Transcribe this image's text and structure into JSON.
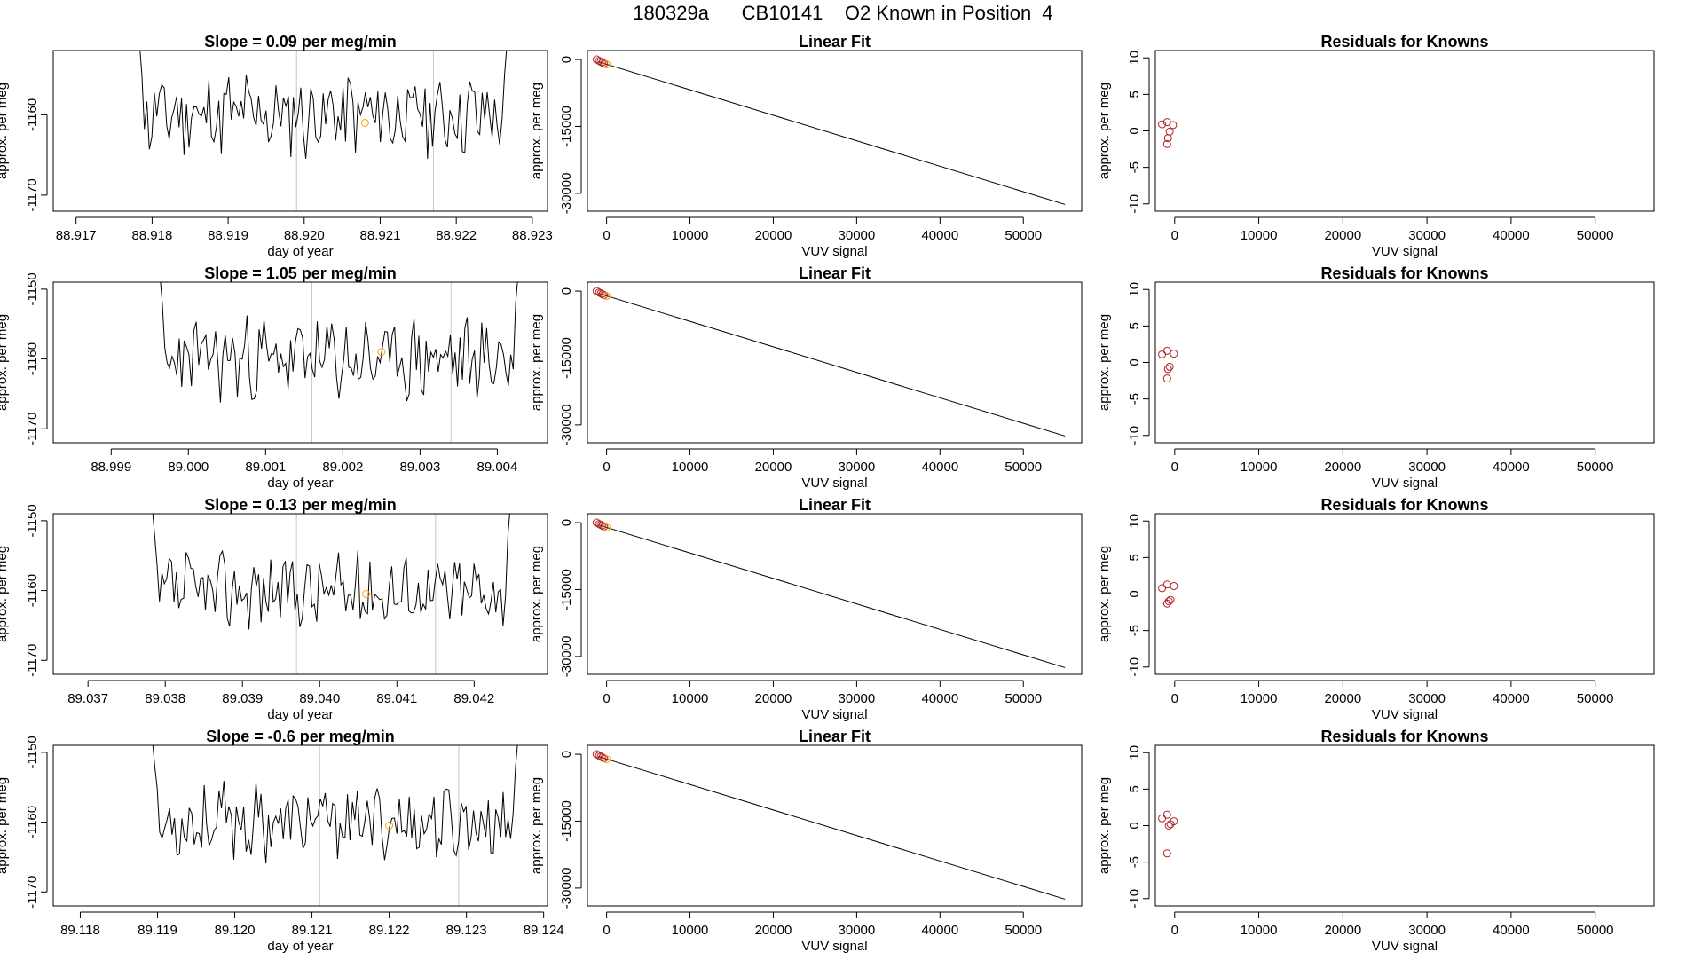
{
  "figure": {
    "title_run": "180329a",
    "title_cylinder": "CB10141",
    "title_desc": "O2 Known in Position  4"
  },
  "colors": {
    "line": "#000000",
    "gridline": "#c8c8c8",
    "known_points": "#b22222",
    "highlight_point": "#ffa500",
    "fit_line": "#000000"
  },
  "chart_data": [
    {
      "type": "line",
      "panel": "time",
      "row": 1,
      "title": "Slope =  0.09  per meg/min",
      "xlabel": "day of year",
      "ylabel": "approx. per meg",
      "xlim": [
        88.9167,
        88.9232
      ],
      "ylim": [
        -1172,
        -1152
      ],
      "xticks": [
        88.917,
        88.918,
        88.919,
        88.92,
        88.921,
        88.922,
        88.923
      ],
      "xticklabels": [
        "88.917",
        "88.918",
        "88.919",
        "88.920",
        "88.921",
        "88.922",
        "88.923"
      ],
      "yticks": [
        -1170,
        -1160
      ],
      "yticklabels": [
        "-1170",
        "-1160"
      ],
      "vlines": [
        88.9199,
        88.9217
      ],
      "highlight": {
        "x": 88.9208,
        "y": -1161
      },
      "series_x_range": [
        88.9178,
        88.9227
      ],
      "series_center": -1160,
      "series_amp": 4.5,
      "seed": 11
    },
    {
      "type": "scatter",
      "panel": "fit",
      "row": 1,
      "title": "Linear Fit",
      "xlabel": "VUV signal",
      "ylabel": "approx. per meg",
      "xlim": [
        -2300,
        57000
      ],
      "ylim": [
        -34000,
        2000
      ],
      "xticks": [
        0,
        10000,
        20000,
        30000,
        40000,
        50000
      ],
      "xticklabels": [
        "0",
        "10000",
        "20000",
        "30000",
        "40000",
        "50000"
      ],
      "yticks": [
        0,
        -15000,
        -30000
      ],
      "yticklabels": [
        "0",
        "-15000",
        "-30000"
      ],
      "fit_line": {
        "x": [
          -1000,
          55000
        ],
        "y": [
          -500,
          -32500
        ]
      },
      "points": [
        {
          "x": -1200,
          "y": 0
        },
        {
          "x": -900,
          "y": -300
        },
        {
          "x": -700,
          "y": -500
        },
        {
          "x": -500,
          "y": -700
        },
        {
          "x": -300,
          "y": -900
        }
      ],
      "highlight": {
        "x": 0,
        "y": -1100
      }
    },
    {
      "type": "scatter",
      "panel": "residuals",
      "row": 1,
      "title": "Residuals for Knowns",
      "xlabel": "VUV signal",
      "ylabel": "approx. per meg",
      "xlim": [
        -2300,
        57000
      ],
      "ylim": [
        -11,
        11
      ],
      "xticks": [
        0,
        10000,
        20000,
        30000,
        40000,
        50000
      ],
      "xticklabels": [
        "0",
        "10000",
        "20000",
        "30000",
        "40000",
        "50000"
      ],
      "yticks": [
        -10,
        -5,
        0,
        5,
        10
      ],
      "yticklabels": [
        "-10",
        "-5",
        "0",
        "5",
        "10"
      ],
      "points": [
        {
          "x": -1500,
          "y": 0.9
        },
        {
          "x": -900,
          "y": 1.2
        },
        {
          "x": -200,
          "y": 0.8
        },
        {
          "x": -600,
          "y": -0.1
        },
        {
          "x": -800,
          "y": -1.0
        },
        {
          "x": -900,
          "y": -1.8
        }
      ]
    },
    {
      "type": "line",
      "panel": "time",
      "row": 2,
      "title": "Slope =  1.05  per meg/min",
      "xlabel": "day of year",
      "ylabel": "approx. per meg",
      "xlim": [
        88.99825,
        89.00465
      ],
      "ylim": [
        -1172,
        -1149
      ],
      "xticks": [
        88.999,
        89.0,
        89.001,
        89.002,
        89.003,
        89.004
      ],
      "xticklabels": [
        "88.999",
        "89.000",
        "89.001",
        "89.002",
        "89.003",
        "89.004"
      ],
      "yticks": [
        -1170,
        -1160,
        -1150
      ],
      "yticklabels": [
        "-1170",
        "-1160",
        "-1150"
      ],
      "vlines": [
        89.0016,
        89.0034
      ],
      "highlight": {
        "x": 89.0025,
        "y": -1159
      },
      "series_x_range": [
        88.9996,
        89.0043
      ],
      "series_center": -1160,
      "series_amp": 5,
      "seed": 23
    },
    {
      "type": "scatter",
      "panel": "fit",
      "row": 2,
      "title": "Linear Fit",
      "xlabel": "VUV signal",
      "ylabel": "approx. per meg",
      "xlim": [
        -2300,
        57000
      ],
      "ylim": [
        -34000,
        2000
      ],
      "xticks": [
        0,
        10000,
        20000,
        30000,
        40000,
        50000
      ],
      "xticklabels": [
        "0",
        "10000",
        "20000",
        "30000",
        "40000",
        "50000"
      ],
      "yticks": [
        0,
        -15000,
        -30000
      ],
      "yticklabels": [
        "0",
        "-15000",
        "-30000"
      ],
      "fit_line": {
        "x": [
          -1000,
          55000
        ],
        "y": [
          -500,
          -32500
        ]
      },
      "points": [
        {
          "x": -1200,
          "y": 0
        },
        {
          "x": -900,
          "y": -300
        },
        {
          "x": -700,
          "y": -500
        },
        {
          "x": -500,
          "y": -700
        },
        {
          "x": -300,
          "y": -900
        }
      ],
      "highlight": {
        "x": 0,
        "y": -1100
      }
    },
    {
      "type": "scatter",
      "panel": "residuals",
      "row": 2,
      "title": "Residuals for Knowns",
      "xlabel": "VUV signal",
      "ylabel": "approx. per meg",
      "xlim": [
        -2300,
        57000
      ],
      "ylim": [
        -11,
        11
      ],
      "xticks": [
        0,
        10000,
        20000,
        30000,
        40000,
        50000
      ],
      "xticklabels": [
        "0",
        "10000",
        "20000",
        "30000",
        "40000",
        "50000"
      ],
      "yticks": [
        -10,
        -5,
        0,
        5,
        10
      ],
      "yticklabels": [
        "-10",
        "-5",
        "0",
        "5",
        "10"
      ],
      "points": [
        {
          "x": -1500,
          "y": 1.1
        },
        {
          "x": -900,
          "y": 1.6
        },
        {
          "x": -100,
          "y": 1.2
        },
        {
          "x": -600,
          "y": -0.6
        },
        {
          "x": -800,
          "y": -0.9
        },
        {
          "x": -900,
          "y": -2.2
        }
      ]
    },
    {
      "type": "line",
      "panel": "time",
      "row": 3,
      "title": "Slope =  0.13  per meg/min",
      "xlabel": "day of year",
      "ylabel": "approx. per meg",
      "xlim": [
        89.03655,
        89.04295
      ],
      "ylim": [
        -1172,
        -1149
      ],
      "xticks": [
        89.037,
        89.038,
        89.039,
        89.04,
        89.041,
        89.042
      ],
      "xticklabels": [
        "89.037",
        "89.038",
        "89.039",
        "89.040",
        "89.041",
        "89.042"
      ],
      "yticks": [
        -1170,
        -1160,
        -1150
      ],
      "yticklabels": [
        "-1170",
        "-1160",
        "-1150"
      ],
      "vlines": [
        89.0397,
        89.0415
      ],
      "highlight": {
        "x": 89.0406,
        "y": -1160.5
      },
      "series_x_range": [
        89.0378,
        89.0425
      ],
      "series_center": -1160,
      "series_amp": 4.5,
      "seed": 37
    },
    {
      "type": "scatter",
      "panel": "fit",
      "row": 3,
      "title": "Linear Fit",
      "xlabel": "VUV signal",
      "ylabel": "approx. per meg",
      "xlim": [
        -2300,
        57000
      ],
      "ylim": [
        -34000,
        2000
      ],
      "xticks": [
        0,
        10000,
        20000,
        30000,
        40000,
        50000
      ],
      "xticklabels": [
        "0",
        "10000",
        "20000",
        "30000",
        "40000",
        "50000"
      ],
      "yticks": [
        0,
        -15000,
        -30000
      ],
      "yticklabels": [
        "0",
        "-15000",
        "-30000"
      ],
      "fit_line": {
        "x": [
          -1000,
          55000
        ],
        "y": [
          -500,
          -32500
        ]
      },
      "points": [
        {
          "x": -1200,
          "y": 0
        },
        {
          "x": -900,
          "y": -300
        },
        {
          "x": -700,
          "y": -500
        },
        {
          "x": -500,
          "y": -700
        },
        {
          "x": -300,
          "y": -900
        }
      ],
      "highlight": {
        "x": 0,
        "y": -1100
      }
    },
    {
      "type": "scatter",
      "panel": "residuals",
      "row": 3,
      "title": "Residuals for Knowns",
      "xlabel": "VUV signal",
      "ylabel": "approx. per meg",
      "xlim": [
        -2300,
        57000
      ],
      "ylim": [
        -11,
        11
      ],
      "xticks": [
        0,
        10000,
        20000,
        30000,
        40000,
        50000
      ],
      "xticklabels": [
        "0",
        "10000",
        "20000",
        "30000",
        "40000",
        "50000"
      ],
      "yticks": [
        -10,
        -5,
        0,
        5,
        10
      ],
      "yticklabels": [
        "-10",
        "-5",
        "0",
        "5",
        "10"
      ],
      "points": [
        {
          "x": -1500,
          "y": 0.8
        },
        {
          "x": -900,
          "y": 1.3
        },
        {
          "x": -100,
          "y": 1.1
        },
        {
          "x": -500,
          "y": -0.8
        },
        {
          "x": -700,
          "y": -1.0
        },
        {
          "x": -900,
          "y": -1.3
        }
      ]
    },
    {
      "type": "line",
      "panel": "time",
      "row": 4,
      "title": "Slope =  -0.6  per meg/min",
      "xlabel": "day of year",
      "ylabel": "approx. per meg",
      "xlim": [
        89.11765,
        89.12405
      ],
      "ylim": [
        -1172,
        -1149
      ],
      "xticks": [
        89.118,
        89.119,
        89.12,
        89.121,
        89.122,
        89.123,
        89.124
      ],
      "xticklabels": [
        "89.118",
        "89.119",
        "89.120",
        "89.121",
        "89.122",
        "89.123",
        "89.124"
      ],
      "yticks": [
        -1170,
        -1160,
        -1150
      ],
      "yticklabels": [
        "-1170",
        "-1160",
        "-1150"
      ],
      "vlines": [
        89.1211,
        89.1229
      ],
      "highlight": {
        "x": 89.122,
        "y": -1160.5
      },
      "series_x_range": [
        89.1189,
        89.1237
      ],
      "series_center": -1160,
      "series_amp": 4.5,
      "seed": 53
    },
    {
      "type": "scatter",
      "panel": "fit",
      "row": 4,
      "title": "Linear Fit",
      "xlabel": "VUV signal",
      "ylabel": "approx. per meg",
      "xlim": [
        -2300,
        57000
      ],
      "ylim": [
        -34000,
        2000
      ],
      "xticks": [
        0,
        10000,
        20000,
        30000,
        40000,
        50000
      ],
      "xticklabels": [
        "0",
        "10000",
        "20000",
        "30000",
        "40000",
        "50000"
      ],
      "yticks": [
        0,
        -15000,
        -30000
      ],
      "yticklabels": [
        "0",
        "-15000",
        "-30000"
      ],
      "fit_line": {
        "x": [
          -1000,
          55000
        ],
        "y": [
          -500,
          -32500
        ]
      },
      "points": [
        {
          "x": -1200,
          "y": 0
        },
        {
          "x": -900,
          "y": -300
        },
        {
          "x": -700,
          "y": -500
        },
        {
          "x": -500,
          "y": -700
        },
        {
          "x": -300,
          "y": -900
        }
      ],
      "highlight": {
        "x": 0,
        "y": -1100
      }
    },
    {
      "type": "scatter",
      "panel": "residuals",
      "row": 4,
      "title": "Residuals for Knowns",
      "xlabel": "VUV signal",
      "ylabel": "approx. per meg",
      "xlim": [
        -2300,
        57000
      ],
      "ylim": [
        -11,
        11
      ],
      "xticks": [
        0,
        10000,
        20000,
        30000,
        40000,
        50000
      ],
      "xticklabels": [
        "0",
        "10000",
        "20000",
        "30000",
        "40000",
        "50000"
      ],
      "yticks": [
        -10,
        -5,
        0,
        5,
        10
      ],
      "yticklabels": [
        "-10",
        "-5",
        "0",
        "5",
        "10"
      ],
      "points": [
        {
          "x": -1500,
          "y": 1.0
        },
        {
          "x": -900,
          "y": 1.5
        },
        {
          "x": -100,
          "y": 0.6
        },
        {
          "x": -500,
          "y": 0.2
        },
        {
          "x": -700,
          "y": 0.0
        },
        {
          "x": -900,
          "y": -3.8
        }
      ]
    }
  ]
}
